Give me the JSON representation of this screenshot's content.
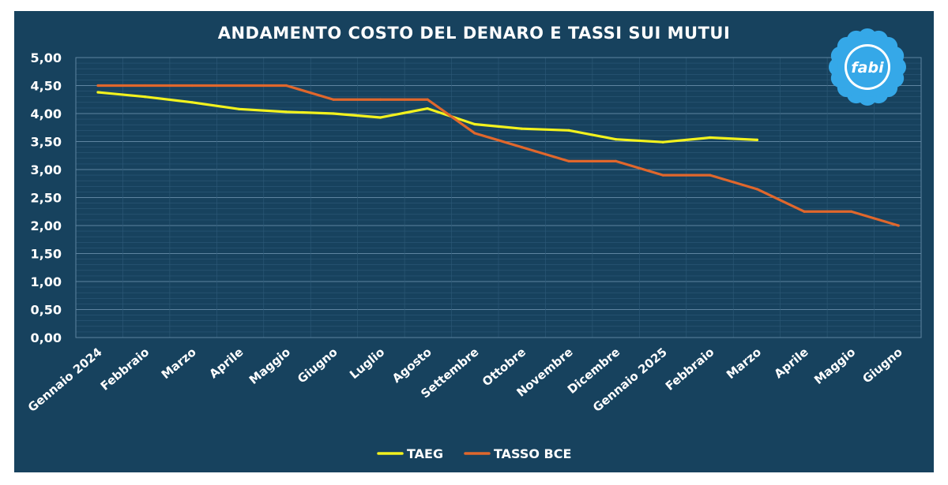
{
  "chart_data": {
    "type": "line",
    "title": "ANDAMENTO COSTO DEL DENARO E TASSI SUI MUTUI",
    "categories": [
      "Gennaio 2024",
      "Febbraio",
      "Marzo",
      "Aprile",
      "Maggio",
      "Giugno",
      "Luglio",
      "Agosto",
      "Settembre",
      "Ottobre",
      "Novembre",
      "Dicembre",
      "Gennaio 2025",
      "Febbraio",
      "Marzo",
      "Aprile",
      "Maggio",
      "Giugno"
    ],
    "series": [
      {
        "name": "TAEG",
        "color": "#f2f21e",
        "values": [
          4.38,
          4.3,
          4.2,
          4.08,
          4.03,
          4.0,
          3.93,
          4.09,
          3.81,
          3.73,
          3.7,
          3.54,
          3.49,
          3.57,
          3.53,
          null,
          null,
          null
        ]
      },
      {
        "name": "TASSO BCE",
        "color": "#e0672c",
        "values": [
          4.5,
          4.5,
          4.5,
          4.5,
          4.5,
          4.25,
          4.25,
          4.25,
          3.65,
          3.4,
          3.15,
          3.15,
          2.9,
          2.9,
          2.65,
          2.25,
          2.25,
          2.0
        ]
      }
    ],
    "ylim": [
      0,
      5
    ],
    "yticks": [
      "0,00",
      "0,50",
      "1,00",
      "1,50",
      "2,00",
      "2,50",
      "3,00",
      "3,50",
      "4,00",
      "4,50",
      "5,00"
    ],
    "xlabel": "",
    "ylabel": "",
    "grid": true,
    "legend": "bottom-center"
  },
  "logo": {
    "text": "fabi",
    "petal_color": "#35a8e8"
  }
}
